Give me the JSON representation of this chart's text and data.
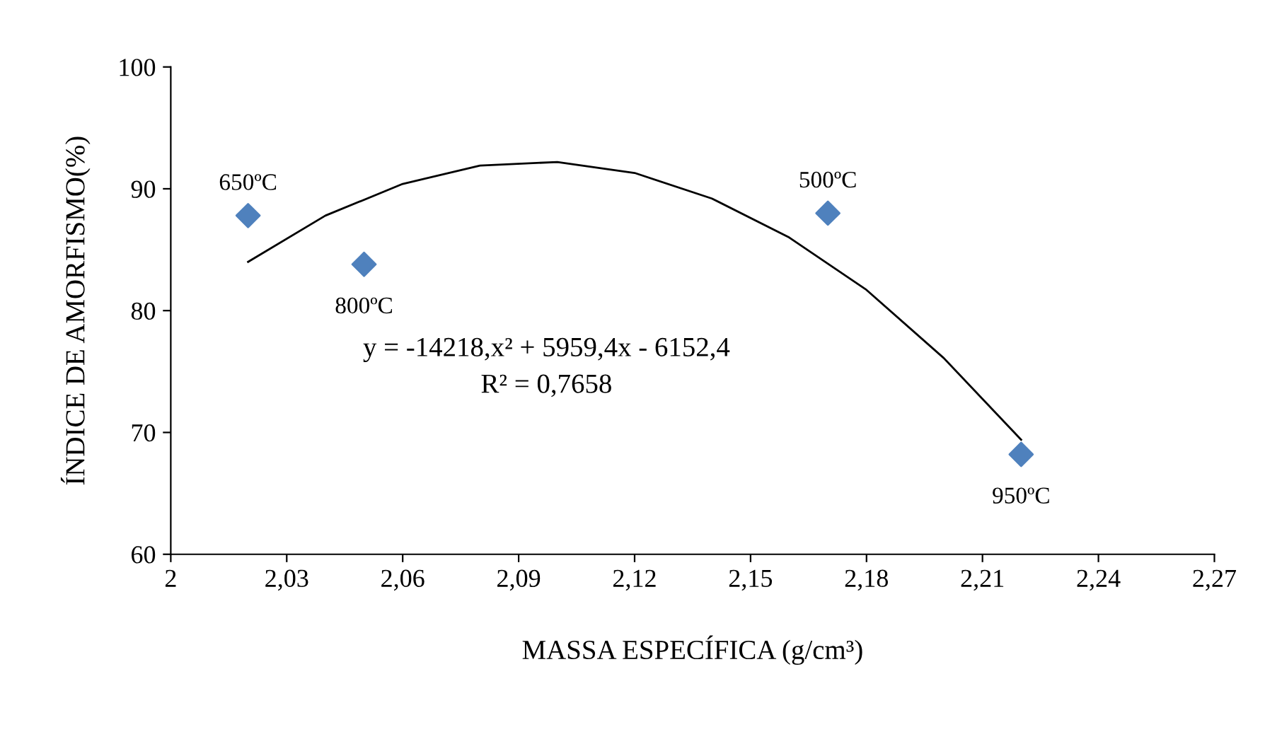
{
  "chart_data": {
    "type": "scatter",
    "xlabel": "MASSA ESPECÍFICA (g/cm³)",
    "ylabel": "ÍNDICE DE AMORFISMO(%)",
    "series": [
      {
        "color": "#4f81bd",
        "marker": "diamond",
        "x": [
          2.02,
          2.05,
          2.17,
          2.22
        ],
        "values": [
          87.8,
          83.8,
          88.0,
          68.2
        ]
      },
      {
        "type": "line",
        "color": "#000000",
        "marker": "none",
        "line_style": "solid",
        "x": [
          2.02,
          2.04,
          2.06,
          2.08,
          2.1,
          2.12,
          2.14,
          2.16,
          2.18,
          2.2,
          2.22
        ],
        "values": [
          84.0,
          87.8,
          90.4,
          91.9,
          92.2,
          91.3,
          89.2,
          86.0,
          81.7,
          76.1,
          69.4
        ]
      }
    ],
    "xlim": [
      2,
      2.27
    ],
    "xticks": [
      2,
      {
        "value": 2.03,
        "label": "2,03"
      },
      {
        "value": 2.06,
        "label": "2,06"
      },
      {
        "value": 2.09,
        "label": "2,09"
      },
      {
        "value": 2.12,
        "label": "2,12"
      },
      {
        "value": 2.15,
        "label": "2,15"
      },
      {
        "value": 2.18,
        "label": "2,18"
      },
      {
        "value": 2.21,
        "label": "2,21"
      },
      {
        "value": 2.24,
        "label": "2,24"
      },
      {
        "value": 2.27,
        "label": "2,27"
      }
    ],
    "ylim": [
      60,
      100
    ],
    "yticks": [
      60,
      70,
      80,
      90,
      100
    ],
    "grid": false,
    "legend": false,
    "annotations": [
      {
        "text": "650ºC",
        "x": 2.02,
        "y": 87.8
      },
      {
        "text": "800ºC",
        "x": 2.05,
        "y": 83.8
      },
      {
        "text": "500ºC",
        "x": 2.17,
        "y": 88.0
      },
      {
        "text": "950ºC",
        "x": 2.22,
        "y": 68.2
      },
      "y = -14218,x² + 5959,4x - 6152,4",
      "R² = 0,7658"
    ]
  }
}
